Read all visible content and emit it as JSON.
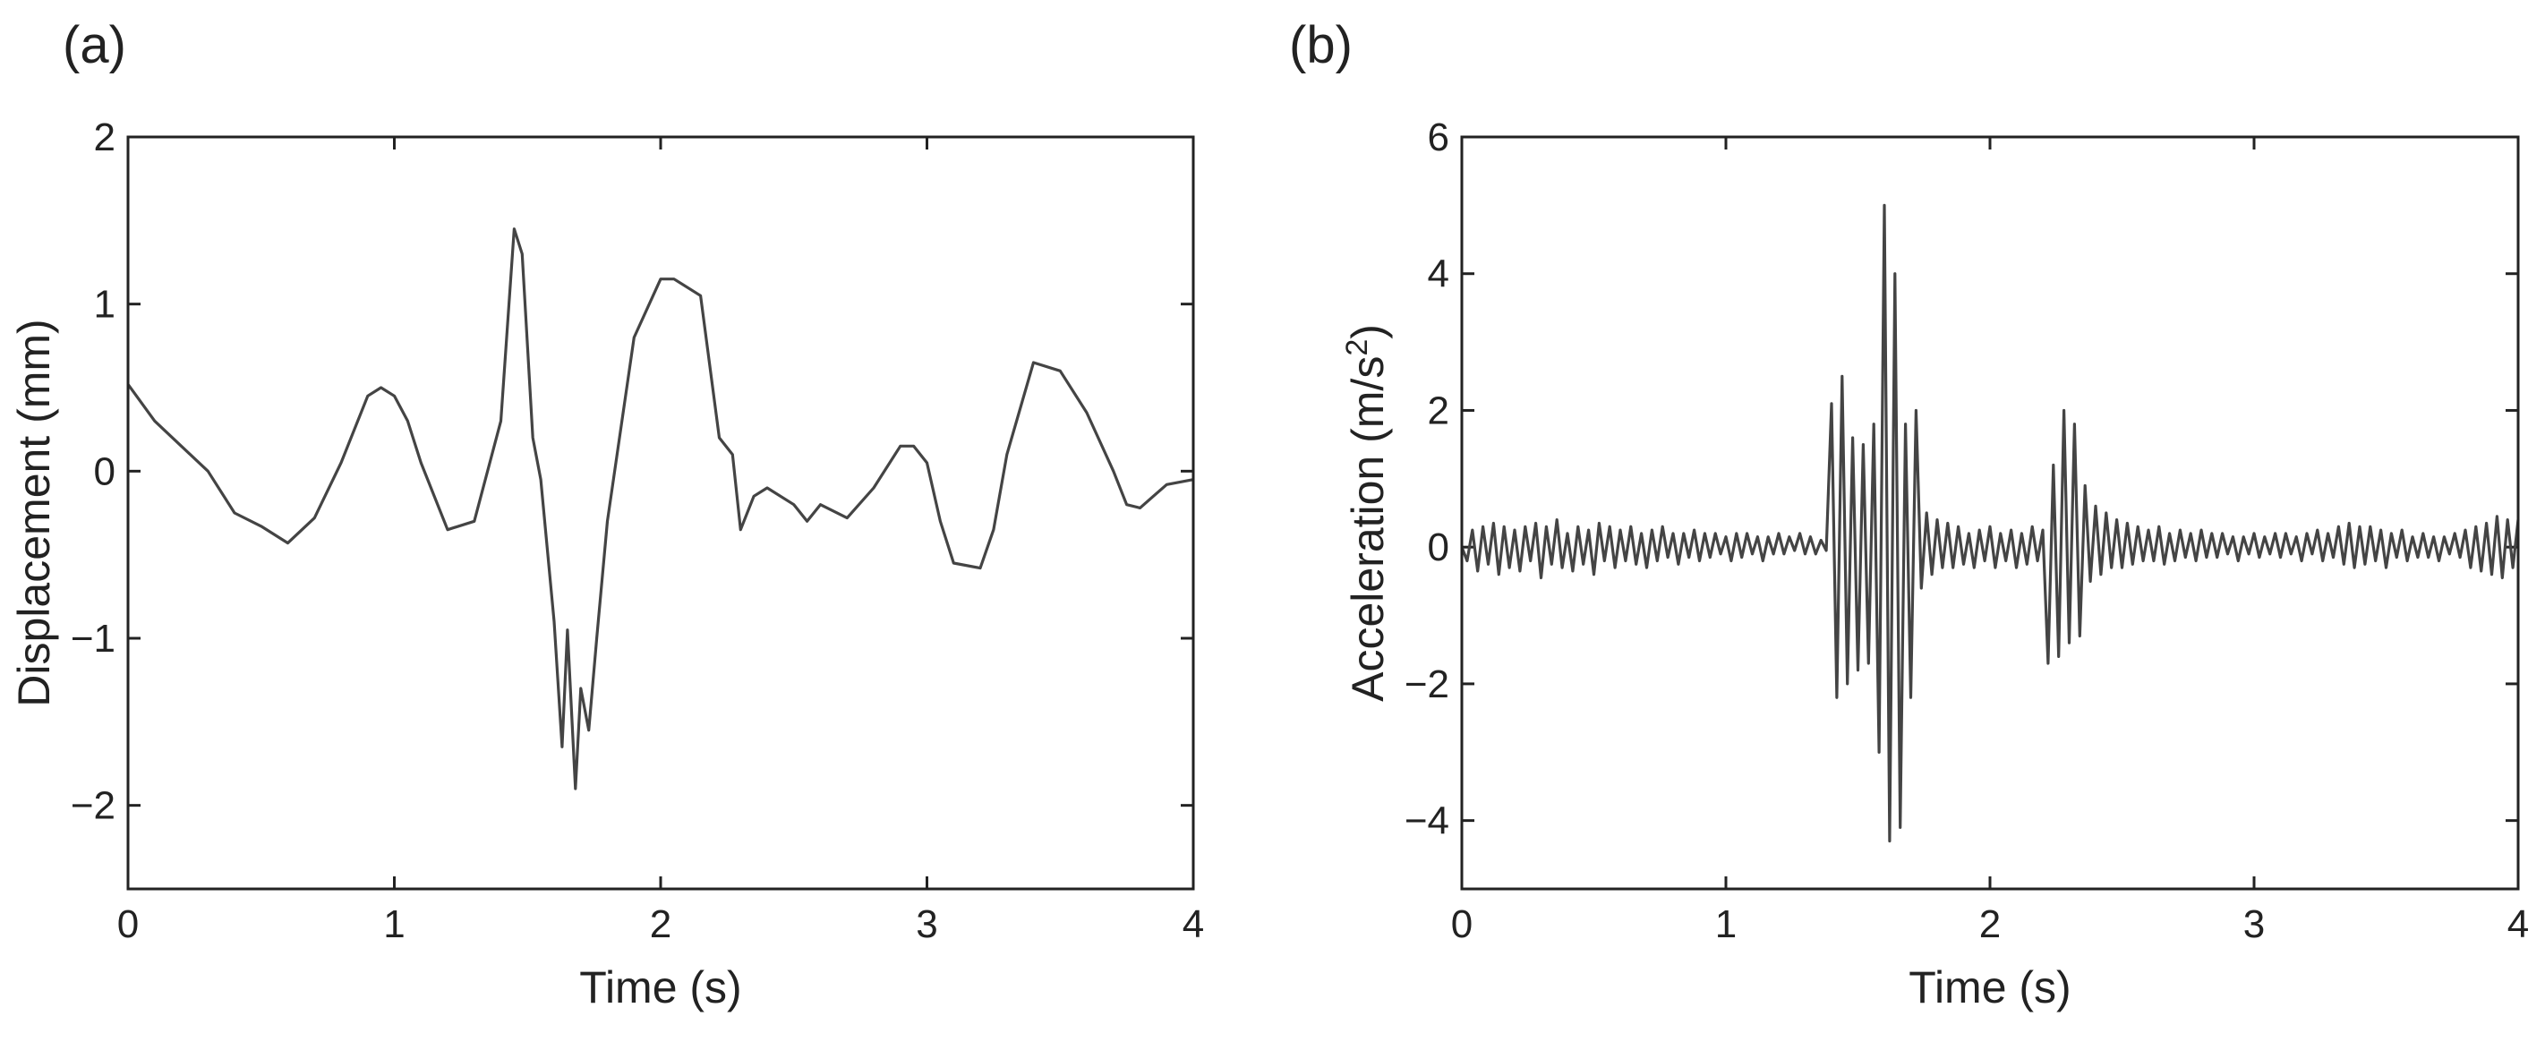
{
  "chart_data": [
    {
      "type": "line",
      "panel_label": "(a)",
      "xlabel": "Time (s)",
      "ylabel": "Displacement (mm)",
      "xlim": [
        0,
        4
      ],
      "ylim": [
        -2.5,
        2
      ],
      "x_ticks": [
        0,
        1,
        2,
        3,
        4
      ],
      "x_tick_labels": [
        "0",
        "1",
        "2",
        "3",
        "4"
      ],
      "y_ticks": [
        -2,
        -1,
        0,
        1,
        2
      ],
      "y_tick_labels": [
        "−2",
        "−1",
        "0",
        "1",
        "2"
      ],
      "grid": false,
      "series": [
        {
          "x": [
            0,
            0.1,
            0.2,
            0.3,
            0.4,
            0.5,
            0.6,
            0.7,
            0.8,
            0.9,
            0.95,
            1.0,
            1.05,
            1.1,
            1.2,
            1.3,
            1.4,
            1.45,
            1.48,
            1.52,
            1.55,
            1.6,
            1.63,
            1.65,
            1.68,
            1.7,
            1.73,
            1.76,
            1.8,
            1.9,
            2.0,
            2.05,
            2.15,
            2.22,
            2.27,
            2.3,
            2.35,
            2.4,
            2.5,
            2.55,
            2.6,
            2.7,
            2.8,
            2.9,
            2.95,
            3.0,
            3.05,
            3.1,
            3.2,
            3.25,
            3.3,
            3.4,
            3.5,
            3.6,
            3.7,
            3.75,
            3.8,
            3.85,
            3.9,
            4.0
          ],
          "y": [
            0.52,
            0.3,
            0.15,
            0.0,
            -0.25,
            -0.33,
            -0.43,
            -0.28,
            0.05,
            0.45,
            0.5,
            0.45,
            0.3,
            0.05,
            -0.35,
            -0.3,
            0.3,
            1.45,
            1.3,
            0.2,
            -0.05,
            -0.9,
            -1.65,
            -0.95,
            -1.9,
            -1.3,
            -1.55,
            -1.0,
            -0.3,
            0.8,
            1.15,
            1.15,
            1.05,
            0.2,
            0.1,
            -0.35,
            -0.15,
            -0.1,
            -0.2,
            -0.3,
            -0.2,
            -0.28,
            -0.1,
            0.15,
            0.15,
            0.05,
            -0.3,
            -0.55,
            -0.58,
            -0.35,
            0.1,
            0.65,
            0.6,
            0.35,
            0.0,
            -0.2,
            -0.22,
            -0.15,
            -0.08,
            -0.05
          ]
        }
      ]
    },
    {
      "type": "line",
      "panel_label": "(b)",
      "xlabel": "Time (s)",
      "ylabel": "Acceleration (m/s",
      "ylabel_superscript": "2",
      "ylabel_suffix": ")",
      "xlim": [
        0,
        4
      ],
      "ylim": [
        -5,
        6
      ],
      "x_ticks": [
        0,
        1,
        2,
        3,
        4
      ],
      "x_tick_labels": [
        "0",
        "1",
        "2",
        "3",
        "4"
      ],
      "y_ticks": [
        -4,
        -2,
        0,
        2,
        4,
        6
      ],
      "y_tick_labels": [
        "−4",
        "−2",
        "0",
        "2",
        "4",
        "6"
      ],
      "grid": false,
      "series": [
        {
          "x": [
            0.0,
            0.02,
            0.04,
            0.06,
            0.08,
            0.1,
            0.12,
            0.14,
            0.16,
            0.18,
            0.2,
            0.22,
            0.24,
            0.26,
            0.28,
            0.3,
            0.32,
            0.34,
            0.36,
            0.38,
            0.4,
            0.42,
            0.44,
            0.46,
            0.48,
            0.5,
            0.52,
            0.54,
            0.56,
            0.58,
            0.6,
            0.62,
            0.64,
            0.66,
            0.68,
            0.7,
            0.72,
            0.74,
            0.76,
            0.78,
            0.8,
            0.82,
            0.84,
            0.86,
            0.88,
            0.9,
            0.92,
            0.94,
            0.96,
            0.98,
            1.0,
            1.02,
            1.04,
            1.06,
            1.08,
            1.1,
            1.12,
            1.14,
            1.16,
            1.18,
            1.2,
            1.22,
            1.24,
            1.26,
            1.28,
            1.3,
            1.32,
            1.34,
            1.36,
            1.38,
            1.4,
            1.42,
            1.44,
            1.46,
            1.48,
            1.5,
            1.52,
            1.54,
            1.56,
            1.58,
            1.6,
            1.62,
            1.64,
            1.66,
            1.68,
            1.7,
            1.72,
            1.74,
            1.76,
            1.78,
            1.8,
            1.82,
            1.84,
            1.86,
            1.88,
            1.9,
            1.92,
            1.94,
            1.96,
            1.98,
            2.0,
            2.02,
            2.04,
            2.06,
            2.08,
            2.1,
            2.12,
            2.14,
            2.16,
            2.18,
            2.2,
            2.22,
            2.24,
            2.26,
            2.28,
            2.3,
            2.32,
            2.34,
            2.36,
            2.38,
            2.4,
            2.42,
            2.44,
            2.46,
            2.48,
            2.5,
            2.52,
            2.54,
            2.56,
            2.58,
            2.6,
            2.62,
            2.64,
            2.66,
            2.68,
            2.7,
            2.72,
            2.74,
            2.76,
            2.78,
            2.8,
            2.82,
            2.84,
            2.86,
            2.88,
            2.9,
            2.92,
            2.94,
            2.96,
            2.98,
            3.0,
            3.02,
            3.04,
            3.06,
            3.08,
            3.1,
            3.12,
            3.14,
            3.16,
            3.18,
            3.2,
            3.22,
            3.24,
            3.26,
            3.28,
            3.3,
            3.32,
            3.34,
            3.36,
            3.38,
            3.4,
            3.42,
            3.44,
            3.46,
            3.48,
            3.5,
            3.52,
            3.54,
            3.56,
            3.58,
            3.6,
            3.62,
            3.64,
            3.66,
            3.68,
            3.7,
            3.72,
            3.74,
            3.76,
            3.78,
            3.8,
            3.82,
            3.84,
            3.86,
            3.88,
            3.9,
            3.92,
            3.94,
            3.96,
            3.98,
            4.0
          ],
          "y": [
            0.0,
            -0.2,
            0.25,
            -0.35,
            0.3,
            -0.25,
            0.35,
            -0.4,
            0.3,
            -0.3,
            0.25,
            -0.35,
            0.3,
            -0.2,
            0.35,
            -0.45,
            0.3,
            -0.25,
            0.4,
            -0.3,
            0.2,
            -0.35,
            0.3,
            -0.25,
            0.25,
            -0.4,
            0.35,
            -0.2,
            0.3,
            -0.3,
            0.25,
            -0.2,
            0.3,
            -0.25,
            0.2,
            -0.3,
            0.25,
            -0.2,
            0.3,
            -0.15,
            0.2,
            -0.25,
            0.2,
            -0.15,
            0.25,
            -0.2,
            0.2,
            -0.15,
            0.2,
            -0.1,
            0.15,
            -0.2,
            0.2,
            -0.15,
            0.2,
            -0.1,
            0.15,
            -0.2,
            0.15,
            -0.1,
            0.2,
            -0.1,
            0.15,
            -0.05,
            0.2,
            -0.1,
            0.15,
            -0.1,
            0.1,
            -0.05,
            2.1,
            -2.2,
            2.5,
            -2.0,
            1.6,
            -1.8,
            1.5,
            -1.7,
            1.8,
            -3.0,
            5.0,
            -4.3,
            4.0,
            -4.1,
            1.8,
            -2.2,
            2.0,
            -0.6,
            0.5,
            -0.4,
            0.4,
            -0.3,
            0.35,
            -0.3,
            0.3,
            -0.25,
            0.2,
            -0.3,
            0.25,
            -0.2,
            0.3,
            -0.3,
            0.2,
            -0.2,
            0.25,
            -0.3,
            0.2,
            -0.25,
            0.3,
            -0.2,
            0.25,
            -1.7,
            1.2,
            -1.6,
            2.0,
            -1.4,
            1.8,
            -1.3,
            0.9,
            -0.5,
            0.6,
            -0.4,
            0.5,
            -0.3,
            0.4,
            -0.3,
            0.35,
            -0.25,
            0.3,
            -0.2,
            0.25,
            -0.2,
            0.3,
            -0.25,
            0.2,
            -0.2,
            0.25,
            -0.15,
            0.2,
            -0.2,
            0.25,
            -0.15,
            0.2,
            -0.15,
            0.2,
            -0.1,
            0.15,
            -0.2,
            0.15,
            -0.1,
            0.2,
            -0.15,
            0.15,
            -0.1,
            0.2,
            -0.15,
            0.2,
            -0.1,
            0.15,
            -0.2,
            0.2,
            -0.1,
            0.25,
            -0.2,
            0.2,
            -0.15,
            0.3,
            -0.25,
            0.35,
            -0.3,
            0.3,
            -0.25,
            0.3,
            -0.2,
            0.25,
            -0.3,
            0.2,
            -0.15,
            0.25,
            -0.2,
            0.15,
            -0.15,
            0.2,
            -0.15,
            0.15,
            -0.2,
            0.15,
            -0.1,
            0.2,
            -0.15,
            0.25,
            -0.3,
            0.3,
            -0.35,
            0.35,
            -0.4,
            0.45,
            -0.45,
            0.4,
            -0.3,
            0.4
          ]
        }
      ]
    }
  ]
}
